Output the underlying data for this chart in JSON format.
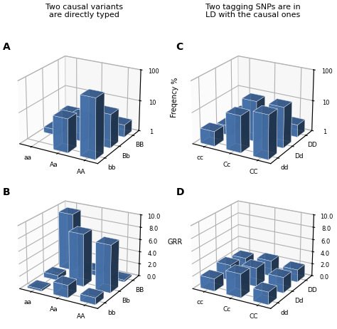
{
  "title_left": "Two causal variants\nare directly typed",
  "title_right": "Two tagging SNPs are in\nLD with the causal ones",
  "bar_color": "#4E7FBE",
  "A_xlabel": [
    "aa",
    "Aa",
    "AA"
  ],
  "A_ylabel": [
    "bb",
    "Bb",
    "BB"
  ],
  "A_data": [
    [
      0.8,
      1.5,
      2.5
    ],
    [
      12.0,
      6.0,
      1.8
    ],
    [
      80.0,
      12.0,
      2.5
    ]
  ],
  "B_xlabel": [
    "aa",
    "Aa",
    "AA"
  ],
  "B_ylabel": [
    "bb",
    "Bb",
    "BB"
  ],
  "B_data": [
    [
      0.3,
      0.8,
      9.3
    ],
    [
      2.0,
      8.4,
      0.8
    ],
    [
      1.1,
      7.6,
      0.3
    ]
  ],
  "C_xlabel": [
    "cc",
    "Cc",
    "CC"
  ],
  "C_ylabel": [
    "dd",
    "Dd",
    "DD"
  ],
  "C_data": [
    [
      3.0,
      2.0,
      2.5
    ],
    [
      15.0,
      20.0,
      3.0
    ],
    [
      25.0,
      20.0,
      2.5
    ]
  ],
  "D_xlabel": [
    "cc",
    "Cc",
    "CC"
  ],
  "D_ylabel": [
    "dd",
    "Dd",
    "DD"
  ],
  "D_data": [
    [
      2.0,
      2.5,
      2.0
    ],
    [
      3.8,
      3.0,
      2.5
    ],
    [
      2.0,
      2.5,
      2.0
    ]
  ]
}
